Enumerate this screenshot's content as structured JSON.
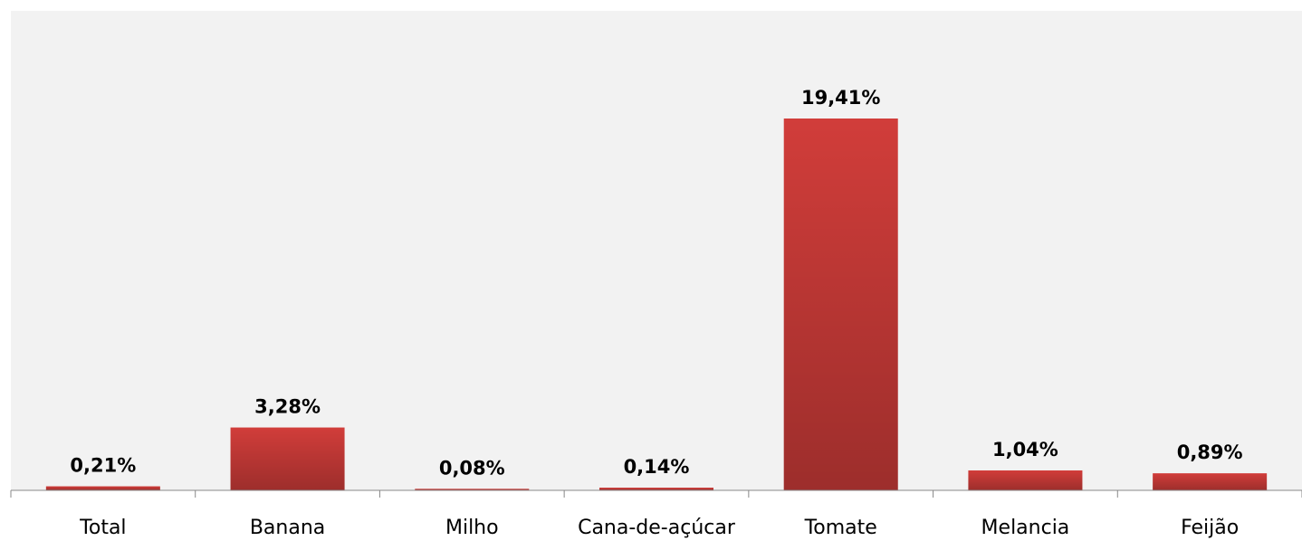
{
  "chart_data": {
    "type": "bar",
    "categories": [
      "Total",
      "Banana",
      "Milho",
      "Cana-de-açúcar",
      "Tomate",
      "Melancia",
      "Feijão"
    ],
    "values": [
      0.21,
      3.28,
      0.08,
      0.14,
      19.41,
      1.04,
      0.89
    ],
    "value_labels": [
      "0,21%",
      "3,28%",
      "0,08%",
      "0,14%",
      "19,41%",
      "1,04%",
      "0,89%"
    ],
    "color": "#d13d3a"
  }
}
